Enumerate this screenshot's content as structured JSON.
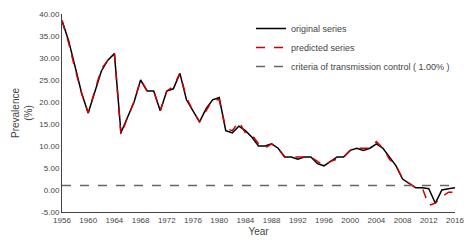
{
  "chart_data": {
    "type": "line",
    "xlabel": "Year",
    "ylabel": "Prevalence\n(%)",
    "xlim": [
      1956,
      2016
    ],
    "ylim": [
      -5.0,
      40.0
    ],
    "xticks": [
      1956,
      1960,
      1964,
      1968,
      1972,
      1976,
      1980,
      1984,
      1988,
      1992,
      1996,
      2000,
      2004,
      2008,
      2012,
      2016
    ],
    "yticks": [
      {
        "value": -5.0,
        "label": "-5.00"
      },
      {
        "value": 0.0,
        "label": "0.00"
      },
      {
        "value": 5.0,
        "label": "5.00"
      },
      {
        "value": 10.0,
        "label": "10.00"
      },
      {
        "value": 15.0,
        "label": "15.00"
      },
      {
        "value": 20.0,
        "label": "20.00"
      },
      {
        "value": 25.0,
        "label": "25.00"
      },
      {
        "value": 30.0,
        "label": "30.00"
      },
      {
        "value": 35.0,
        "label": "35.00"
      },
      {
        "value": 40.0,
        "label": "40.00"
      }
    ],
    "grid": false,
    "legend": "upper right",
    "x": [
      1956,
      1957,
      1958,
      1959,
      1960,
      1961,
      1962,
      1963,
      1964,
      1965,
      1966,
      1967,
      1968,
      1969,
      1970,
      1971,
      1972,
      1973,
      1974,
      1975,
      1976,
      1977,
      1978,
      1979,
      1980,
      1981,
      1982,
      1983,
      1984,
      1985,
      1986,
      1987,
      1988,
      1989,
      1990,
      1991,
      1992,
      1993,
      1994,
      1995,
      1996,
      1997,
      1998,
      1999,
      2000,
      2001,
      2002,
      2003,
      2004,
      2005,
      2006,
      2007,
      2008,
      2009,
      2010,
      2011,
      2012,
      2013,
      2014,
      2015,
      2016
    ],
    "series": [
      {
        "name": "original series",
        "color": "#000000",
        "line_style": "solid",
        "values": [
          38.5,
          34.0,
          28.0,
          22.0,
          17.5,
          22.5,
          27.0,
          29.5,
          31.0,
          13.0,
          16.5,
          20.0,
          25.0,
          22.5,
          22.5,
          18.0,
          22.5,
          23.0,
          26.5,
          20.5,
          18.0,
          15.5,
          18.5,
          20.5,
          21.0,
          13.5,
          13.0,
          14.5,
          13.5,
          12.0,
          10.0,
          10.0,
          10.5,
          9.5,
          7.5,
          7.5,
          7.0,
          7.5,
          7.5,
          6.0,
          5.5,
          6.5,
          7.5,
          7.5,
          9.0,
          9.5,
          9.0,
          9.5,
          10.5,
          9.5,
          7.5,
          5.5,
          2.5,
          1.5,
          0.5,
          0.5,
          0.3,
          -3.0,
          0.0,
          0.3,
          0.5
        ]
      },
      {
        "name": "predicted series",
        "color": "#cc0000",
        "line_style": "dashed",
        "values": [
          38.5,
          33.5,
          27.5,
          22.0,
          17.5,
          22.5,
          27.5,
          29.5,
          31.0,
          12.5,
          16.5,
          20.0,
          25.0,
          22.5,
          22.5,
          18.0,
          22.5,
          23.5,
          26.5,
          21.0,
          18.0,
          15.5,
          18.0,
          20.5,
          20.5,
          14.0,
          13.5,
          15.5,
          13.0,
          12.5,
          10.5,
          9.5,
          10.5,
          9.5,
          7.5,
          7.5,
          7.5,
          7.5,
          7.5,
          6.5,
          5.5,
          6.5,
          7.0,
          7.5,
          9.0,
          9.5,
          9.5,
          9.5,
          11.0,
          9.5,
          7.0,
          5.5,
          2.5,
          1.5,
          0.5,
          0.5,
          -3.5,
          -3.0,
          -1.5,
          -0.5,
          -0.5
        ]
      },
      {
        "name": "criteria of transmission control ( 1.00% )",
        "type": "hline",
        "color": "#666666",
        "line_style": "dashed",
        "value": 1.0
      }
    ]
  }
}
